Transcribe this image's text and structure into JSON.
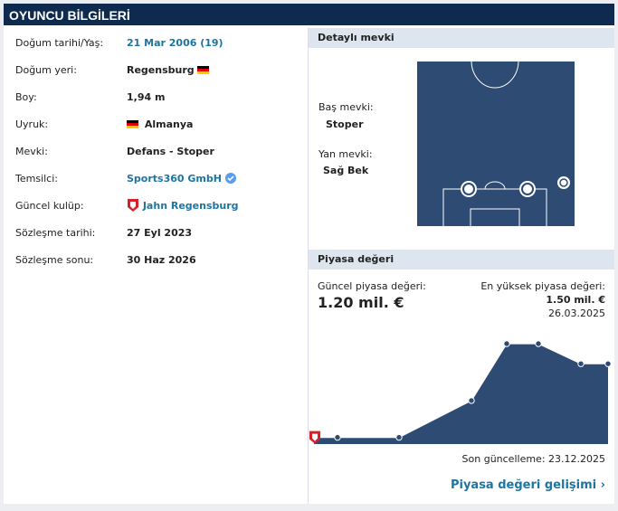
{
  "header": {
    "title": "OYUNCU BİLGİLERİ"
  },
  "info": {
    "rows": [
      {
        "label": "Doğum tarihi/Yaş:",
        "value": "21 Mar 2006 (19)"
      },
      {
        "label": "Doğum yeri:",
        "value": "Regensburg"
      },
      {
        "label": "Boy:",
        "value": "1,94 m"
      },
      {
        "label": "Uyruk:",
        "value": "Almanya"
      },
      {
        "label": "Mevki:",
        "value": "Defans - Stoper"
      },
      {
        "label": "Temsilci:",
        "value": "Sports360 GmbH"
      },
      {
        "label": "Güncel kulüp:",
        "value": "Jahn Regensburg"
      },
      {
        "label": "Sözleşme tarihi:",
        "value": "27 Eyl 2023"
      },
      {
        "label": "Sözleşme sonu:",
        "value": "30 Haz 2026"
      }
    ]
  },
  "position": {
    "title": "Detaylı mevki",
    "main_label": "Baş mevki:",
    "main": "Stoper",
    "other_label": "Yan mevki:",
    "other": "Sağ Bek"
  },
  "market_value": {
    "title": "Piyasa değeri",
    "current_label": "Güncel piyasa değeri:",
    "current": "1.20 mil. €",
    "highest_label": "En yüksek piyasa değeri:",
    "highest": "1.50 mil. €",
    "highest_date": "26.03.2025",
    "updated": "Son güncelleme: 23.12.2025",
    "link": "Piyasa değeri gelişimi",
    "values": [
      0.1,
      0.1,
      0.65,
      1.5,
      1.5,
      1.2,
      1.2
    ]
  }
}
